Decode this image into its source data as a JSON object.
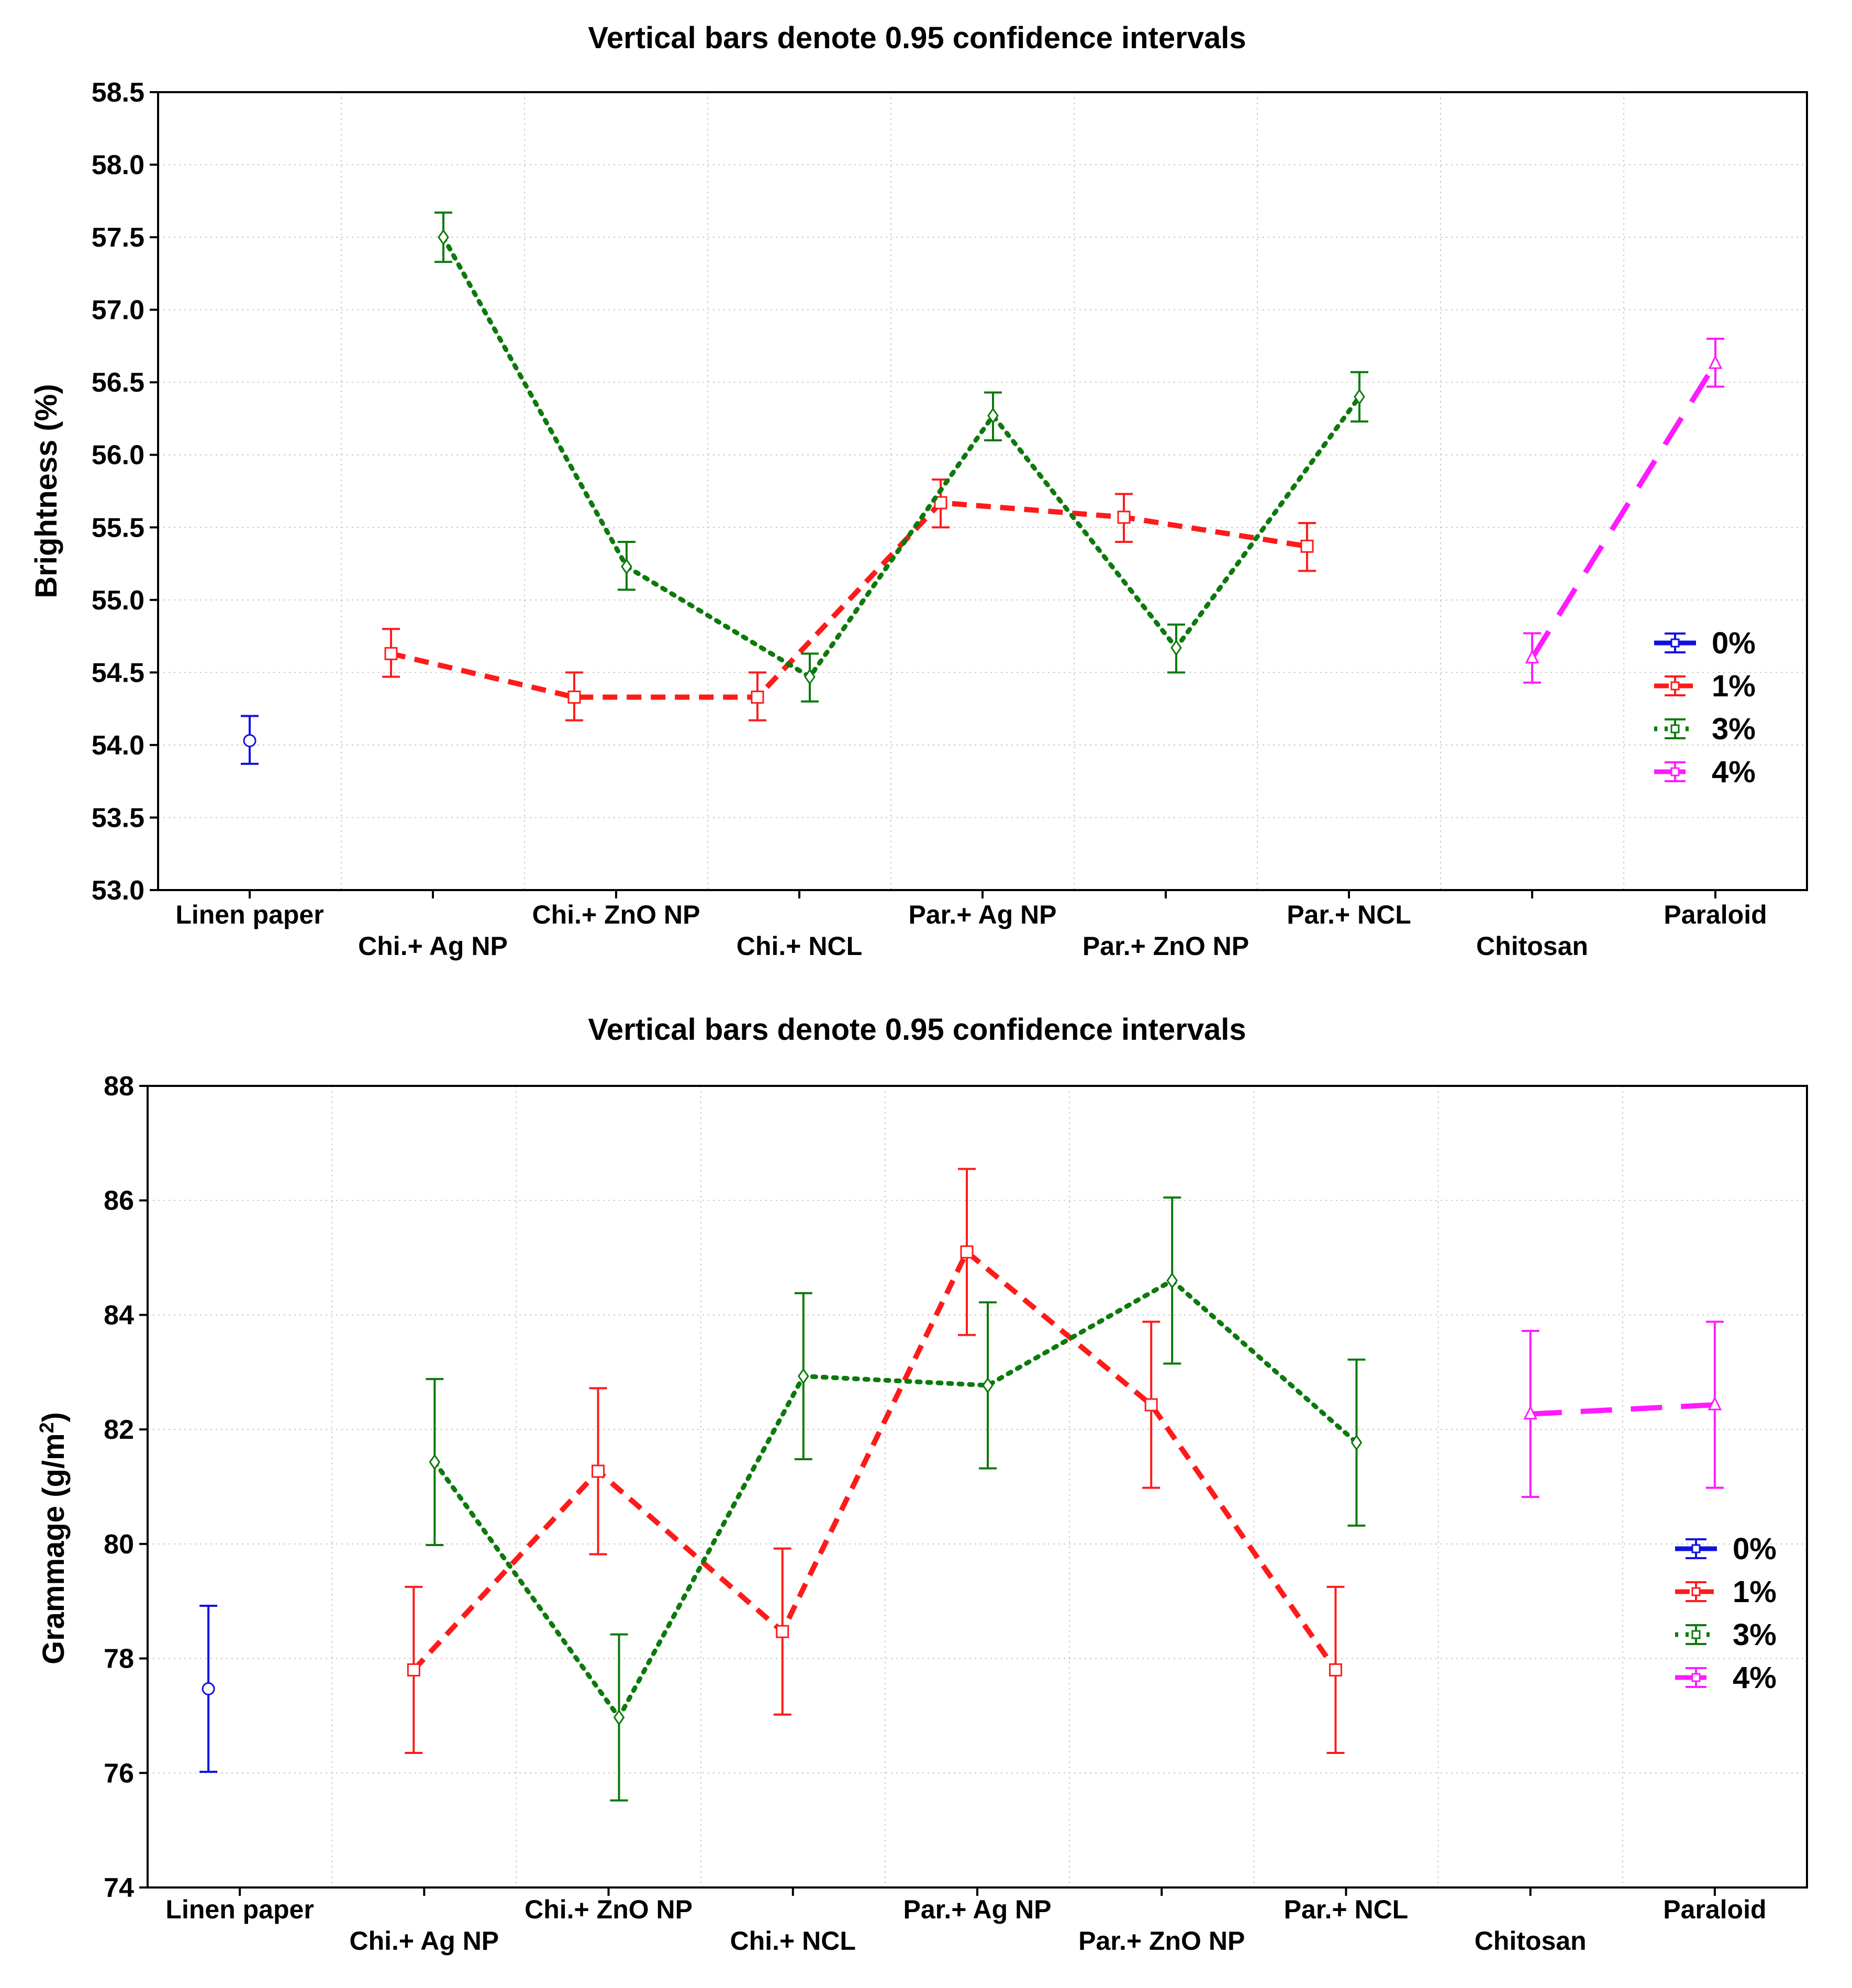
{
  "colors": {
    "0%": "#1010e0",
    "1%": "#ff1a1a",
    "3%": "#0b7a0b",
    "4%": "#ff1aff"
  },
  "chart_data": [
    {
      "type": "line",
      "title": "Vertical bars denote 0.95 confidence intervals",
      "ylabel": "Brightness (%)",
      "xlabel": "",
      "ylim": [
        53.0,
        58.5
      ],
      "yticks": [
        "53.0",
        "53.5",
        "54.0",
        "54.5",
        "55.0",
        "55.5",
        "56.0",
        "56.5",
        "57.0",
        "57.5",
        "58.0",
        "58.5"
      ],
      "categories": [
        "Linen paper",
        "Chi.+ Ag NP",
        "Chi.+ ZnO NP",
        "Chi.+ NCL",
        "Par.+ Ag NP",
        "Par.+ ZnO NP",
        "Par.+ NCL",
        "Chitosan",
        "Paraloid"
      ],
      "legend": [
        "0%",
        "1%",
        "3%",
        "4%"
      ],
      "legend_position": "right",
      "grid": true,
      "series": [
        {
          "name": "0%",
          "marker": "circle",
          "line": "none",
          "points": [
            {
              "cat": 0,
              "y": 54.03,
              "lo": 53.87,
              "hi": 54.2
            }
          ]
        },
        {
          "name": "1%",
          "marker": "square",
          "line": "dashed",
          "points": [
            {
              "cat": 1,
              "y": 54.63,
              "lo": 54.47,
              "hi": 54.8
            },
            {
              "cat": 2,
              "y": 54.33,
              "lo": 54.17,
              "hi": 54.5
            },
            {
              "cat": 3,
              "y": 54.33,
              "lo": 54.17,
              "hi": 54.5
            },
            {
              "cat": 4,
              "y": 55.67,
              "lo": 55.5,
              "hi": 55.83
            },
            {
              "cat": 5,
              "y": 55.57,
              "lo": 55.4,
              "hi": 55.73
            },
            {
              "cat": 6,
              "y": 55.37,
              "lo": 55.2,
              "hi": 55.53
            }
          ]
        },
        {
          "name": "3%",
          "marker": "diamond",
          "line": "dotted",
          "points": [
            {
              "cat": 1,
              "y": 57.5,
              "lo": 57.33,
              "hi": 57.67
            },
            {
              "cat": 2,
              "y": 55.23,
              "lo": 55.07,
              "hi": 55.4
            },
            {
              "cat": 3,
              "y": 54.47,
              "lo": 54.3,
              "hi": 54.63
            },
            {
              "cat": 4,
              "y": 56.27,
              "lo": 56.1,
              "hi": 56.43
            },
            {
              "cat": 5,
              "y": 54.67,
              "lo": 54.5,
              "hi": 54.83
            },
            {
              "cat": 6,
              "y": 56.4,
              "lo": 56.23,
              "hi": 56.57
            }
          ]
        },
        {
          "name": "4%",
          "marker": "triangle",
          "line": "longdash",
          "points": [
            {
              "cat": 7,
              "y": 54.6,
              "lo": 54.43,
              "hi": 54.77
            },
            {
              "cat": 8,
              "y": 56.63,
              "lo": 56.47,
              "hi": 56.8
            }
          ]
        }
      ]
    },
    {
      "type": "line",
      "title": "Vertical bars denote 0.95 confidence intervals",
      "ylabel": "Grammage (g/m",
      "ylabel_superscript": "2",
      "ylabel_suffix": ")",
      "xlabel": "",
      "ylim": [
        74,
        88
      ],
      "yticks": [
        "74",
        "76",
        "78",
        "80",
        "82",
        "84",
        "86",
        "88"
      ],
      "categories": [
        "Linen paper",
        "Chi.+ Ag NP",
        "Chi.+ ZnO NP",
        "Chi.+ NCL",
        "Par.+ Ag NP",
        "Par.+ ZnO NP",
        "Par.+ NCL",
        "Chitosan",
        "Paraloid"
      ],
      "legend": [
        "0%",
        "1%",
        "3%",
        "4%"
      ],
      "legend_position": "right",
      "grid": true,
      "series": [
        {
          "name": "0%",
          "marker": "circle",
          "line": "none",
          "points": [
            {
              "cat": 0,
              "y": 77.47,
              "lo": 76.02,
              "hi": 78.92
            }
          ]
        },
        {
          "name": "1%",
          "marker": "square",
          "line": "dashed",
          "points": [
            {
              "cat": 1,
              "y": 77.8,
              "lo": 76.35,
              "hi": 79.25
            },
            {
              "cat": 2,
              "y": 81.27,
              "lo": 79.82,
              "hi": 82.72
            },
            {
              "cat": 3,
              "y": 78.47,
              "lo": 77.02,
              "hi": 79.92
            },
            {
              "cat": 4,
              "y": 85.1,
              "lo": 83.65,
              "hi": 86.55
            },
            {
              "cat": 5,
              "y": 82.43,
              "lo": 80.98,
              "hi": 83.88
            },
            {
              "cat": 6,
              "y": 77.8,
              "lo": 76.35,
              "hi": 79.25
            }
          ]
        },
        {
          "name": "3%",
          "marker": "diamond",
          "line": "dotted",
          "points": [
            {
              "cat": 1,
              "y": 81.43,
              "lo": 79.98,
              "hi": 82.88
            },
            {
              "cat": 2,
              "y": 76.97,
              "lo": 75.52,
              "hi": 78.42
            },
            {
              "cat": 3,
              "y": 82.93,
              "lo": 81.48,
              "hi": 84.38
            },
            {
              "cat": 4,
              "y": 82.77,
              "lo": 81.32,
              "hi": 84.22
            },
            {
              "cat": 5,
              "y": 84.6,
              "lo": 83.15,
              "hi": 86.05
            },
            {
              "cat": 6,
              "y": 81.77,
              "lo": 80.32,
              "hi": 83.22
            }
          ]
        },
        {
          "name": "4%",
          "marker": "triangle",
          "line": "longdash",
          "points": [
            {
              "cat": 7,
              "y": 82.27,
              "lo": 80.82,
              "hi": 83.72
            },
            {
              "cat": 8,
              "y": 82.43,
              "lo": 80.98,
              "hi": 83.88
            }
          ]
        }
      ]
    }
  ]
}
